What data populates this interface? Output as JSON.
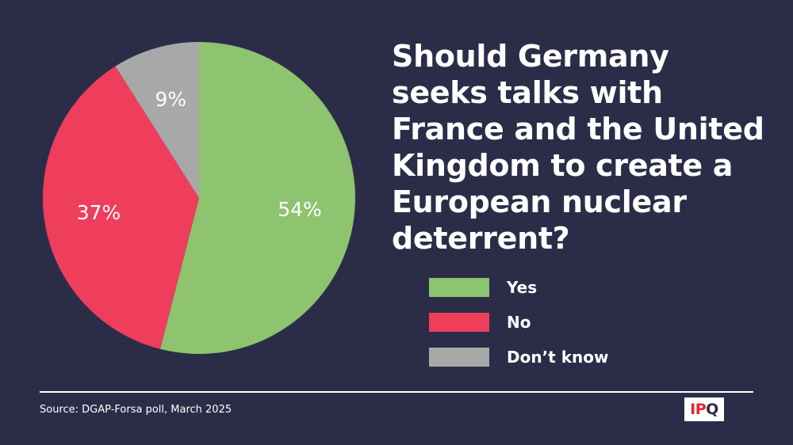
{
  "chart_data": {
    "type": "pie",
    "title": "Should Germany seeks talks with France and the United Kingdom to create a European nuclear deterrent?",
    "categories": [
      "Yes",
      "No",
      "Don’t know"
    ],
    "values": [
      54,
      37,
      9
    ],
    "data_labels": [
      "54%",
      "37%",
      "9%"
    ],
    "colors": [
      "#8ec36f",
      "#ee3e5c",
      "#a8a8a8"
    ],
    "start_angle_deg": 0,
    "direction": "clockwise",
    "legend_position": "right"
  },
  "legend": [
    {
      "label": "Yes",
      "color": "#8ec36f"
    },
    {
      "label": "No",
      "color": "#ee3e5c"
    },
    {
      "label": "Don’t know",
      "color": "#a8a8a8"
    }
  ],
  "source": "Source: DGAP-Forsa poll, March 2025",
  "logo": {
    "text_red": "IP",
    "text_dark": "Q"
  },
  "colors": {
    "background": "#2b2d48",
    "text": "#ffffff"
  }
}
